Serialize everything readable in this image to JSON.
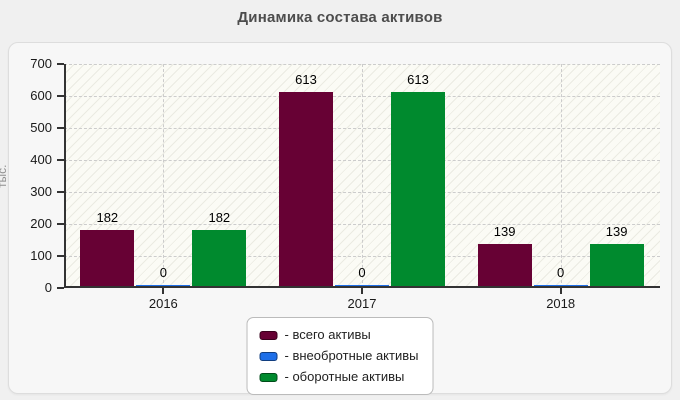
{
  "page": {
    "title": "Динамика состава активов"
  },
  "colors": {
    "page_bg": "#f0f0f0",
    "panel_bg": "#f7f7f7",
    "panel_border": "#dddddd",
    "plot_bg": "#fbfbf5",
    "grid": "#cccccc",
    "axis": "#333333",
    "title_text": "#4d4d4d",
    "tick_text": "#1a1a1a",
    "ylabel_text": "#8f8f8f",
    "legend_bg": "#ffffff",
    "legend_border": "#bbbbbb"
  },
  "chart_data": {
    "type": "bar",
    "title": "Динамика состава активов",
    "categories": [
      "2016",
      "2017",
      "2018"
    ],
    "series": [
      {
        "name": "всего активы",
        "legend_label": "- всего активы",
        "color": "#670134",
        "values": [
          182,
          613,
          139
        ]
      },
      {
        "name": "внеобротные активы",
        "legend_label": "- внеобротные активы",
        "color": "#1e6fe8",
        "values": [
          0,
          0,
          0
        ]
      },
      {
        "name": "оборотные активы",
        "legend_label": "- оборотные активы",
        "color": "#008a2e",
        "values": [
          182,
          613,
          139
        ]
      }
    ],
    "ylabel": "тыс.",
    "ylim": [
      0,
      700
    ],
    "yticks": [
      0,
      100,
      200,
      300,
      400,
      500,
      600,
      700
    ],
    "grid": true,
    "value_labels": true,
    "legend_position": "bottom"
  }
}
